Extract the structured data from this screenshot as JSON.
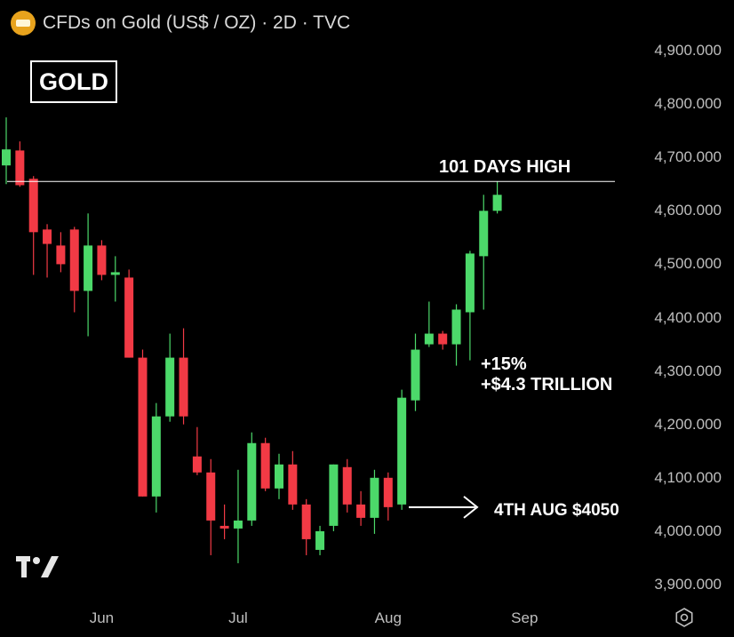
{
  "header": {
    "symbol_title": "CFDs on Gold (US$ / OZ) · 2D · TVC",
    "asset_label": "GOLD"
  },
  "annotations": {
    "high_label": "101 DAYS HIGH",
    "gain_pct": "+15%",
    "gain_value": "+$4.3 TRILLION",
    "low_label": "4TH AUG $4050"
  },
  "colors": {
    "up": "#4cd96a",
    "down": "#f23a45",
    "background": "#000000",
    "axis_text": "#bfbfbf",
    "annotation": "#ffffff",
    "badge": "#e8a31d"
  },
  "icons": {
    "symbol_badge": "gold-bars-icon",
    "brand": "tradingview-logo-icon",
    "settings": "gear-icon"
  },
  "chart_data": {
    "type": "candlestick",
    "title": "CFDs on Gold (US$ / OZ) · 2D · TVC",
    "ylim": [
      3860,
      4960
    ],
    "yticks": [
      3900,
      4000,
      4100,
      4200,
      4300,
      4400,
      4500,
      4600,
      4700,
      4800,
      4900
    ],
    "ytick_labels": [
      "3,900.000",
      "4,000.000",
      "4,100.000",
      "4,200.000",
      "4,300.000",
      "4,400.000",
      "4,500.000",
      "4,600.000",
      "4,700.000",
      "4,800.000",
      "4,900.000"
    ],
    "xtick_labels": [
      {
        "label": "Jun",
        "index": 7
      },
      {
        "label": "Jul",
        "index": 17
      },
      {
        "label": "Aug",
        "index": 28
      },
      {
        "label": "Sep",
        "index": 38
      }
    ],
    "candles": [
      {
        "o": 4685,
        "h": 4775,
        "l": 4650,
        "c": 4715
      },
      {
        "o": 4713,
        "h": 4730,
        "l": 4645,
        "c": 4648
      },
      {
        "o": 4660,
        "h": 4665,
        "l": 4480,
        "c": 4560
      },
      {
        "o": 4565,
        "h": 4575,
        "l": 4475,
        "c": 4538
      },
      {
        "o": 4535,
        "h": 4560,
        "l": 4485,
        "c": 4500
      },
      {
        "o": 4565,
        "h": 4570,
        "l": 4410,
        "c": 4450
      },
      {
        "o": 4450,
        "h": 4595,
        "l": 4365,
        "c": 4535
      },
      {
        "o": 4535,
        "h": 4545,
        "l": 4470,
        "c": 4480
      },
      {
        "o": 4480,
        "h": 4515,
        "l": 4430,
        "c": 4485
      },
      {
        "o": 4475,
        "h": 4490,
        "l": 4325,
        "c": 4325
      },
      {
        "o": 4325,
        "h": 4340,
        "l": 4065,
        "c": 4065
      },
      {
        "o": 4065,
        "h": 4240,
        "l": 4035,
        "c": 4215
      },
      {
        "o": 4215,
        "h": 4370,
        "l": 4205,
        "c": 4325
      },
      {
        "o": 4325,
        "h": 4380,
        "l": 4200,
        "c": 4215
      },
      {
        "o": 4140,
        "h": 4195,
        "l": 4105,
        "c": 4110
      },
      {
        "o": 4110,
        "h": 4135,
        "l": 3955,
        "c": 4020
      },
      {
        "o": 4010,
        "h": 4050,
        "l": 3985,
        "c": 4005
      },
      {
        "o": 4005,
        "h": 4115,
        "l": 3940,
        "c": 4020
      },
      {
        "o": 4020,
        "h": 4185,
        "l": 4010,
        "c": 4165
      },
      {
        "o": 4165,
        "h": 4175,
        "l": 4075,
        "c": 4080
      },
      {
        "o": 4080,
        "h": 4145,
        "l": 4060,
        "c": 4125
      },
      {
        "o": 4125,
        "h": 4150,
        "l": 4040,
        "c": 4050
      },
      {
        "o": 4050,
        "h": 4060,
        "l": 3955,
        "c": 3985
      },
      {
        "o": 3965,
        "h": 4010,
        "l": 3955,
        "c": 4000
      },
      {
        "o": 4010,
        "h": 4125,
        "l": 4000,
        "c": 4125
      },
      {
        "o": 4120,
        "h": 4135,
        "l": 4035,
        "c": 4050
      },
      {
        "o": 4050,
        "h": 4075,
        "l": 4010,
        "c": 4025
      },
      {
        "o": 4025,
        "h": 4115,
        "l": 3995,
        "c": 4100
      },
      {
        "o": 4100,
        "h": 4110,
        "l": 4020,
        "c": 4045
      },
      {
        "o": 4050,
        "h": 4265,
        "l": 4040,
        "c": 4250
      },
      {
        "o": 4245,
        "h": 4370,
        "l": 4225,
        "c": 4340
      },
      {
        "o": 4350,
        "h": 4430,
        "l": 4345,
        "c": 4370
      },
      {
        "o": 4370,
        "h": 4375,
        "l": 4340,
        "c": 4350
      },
      {
        "o": 4350,
        "h": 4425,
        "l": 4310,
        "c": 4415
      },
      {
        "o": 4410,
        "h": 4525,
        "l": 4320,
        "c": 4520
      },
      {
        "o": 4515,
        "h": 4630,
        "l": 4415,
        "c": 4600
      },
      {
        "o": 4600,
        "h": 4655,
        "l": 4595,
        "c": 4630
      }
    ],
    "horizontal_line": 4655,
    "arrow_price": 4045
  }
}
